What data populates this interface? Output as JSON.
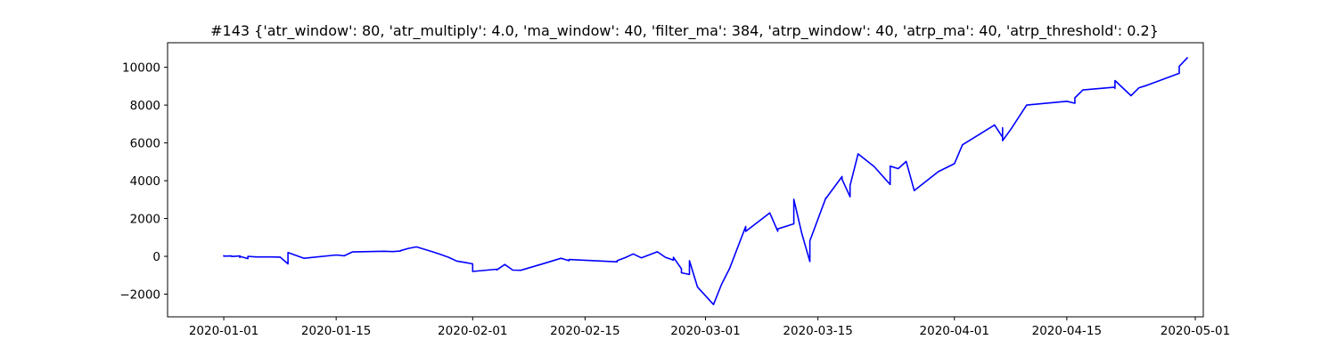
{
  "chart_data": {
    "type": "line",
    "title": "#143 {'atr_window': 80, 'atr_multiply': 4.0, 'ma_window': 40, 'filter_ma': 384, 'atrp_window': 40, 'atrp_ma': 40, 'atrp_threshold': 0.2}",
    "xlabel": "",
    "ylabel": "",
    "x_axis_type": "date",
    "xlim": [
      "2019-12-25",
      "2020-05-02"
    ],
    "ylim": [
      -3200,
      11300
    ],
    "grid": false,
    "line_color": "#0000ff",
    "x_ticks": [
      {
        "value": "2020-01-01",
        "label": "2020-01-01"
      },
      {
        "value": "2020-01-15",
        "label": "2020-01-15"
      },
      {
        "value": "2020-02-01",
        "label": "2020-02-01"
      },
      {
        "value": "2020-02-15",
        "label": "2020-02-15"
      },
      {
        "value": "2020-03-01",
        "label": "2020-03-01"
      },
      {
        "value": "2020-03-15",
        "label": "2020-03-15"
      },
      {
        "value": "2020-04-01",
        "label": "2020-04-01"
      },
      {
        "value": "2020-04-15",
        "label": "2020-04-15"
      },
      {
        "value": "2020-05-01",
        "label": "2020-05-01"
      }
    ],
    "y_ticks": [
      {
        "value": -2000,
        "label": "−2000"
      },
      {
        "value": 0,
        "label": "0"
      },
      {
        "value": 2000,
        "label": "2000"
      },
      {
        "value": 4000,
        "label": "4000"
      },
      {
        "value": 6000,
        "label": "6000"
      },
      {
        "value": 8000,
        "label": "8000"
      },
      {
        "value": 10000,
        "label": "10000"
      }
    ],
    "series": [
      {
        "points": [
          [
            "2020-01-01",
            30
          ],
          [
            "2020-01-01",
            10
          ],
          [
            "2020-01-02",
            20
          ],
          [
            "2020-01-02",
            -10
          ],
          [
            "2020-01-03",
            20
          ],
          [
            "2020-01-03",
            -60
          ],
          [
            "2020-01-03",
            0
          ],
          [
            "2020-01-04",
            -120
          ],
          [
            "2020-01-04",
            0
          ],
          [
            "2020-01-05",
            -30
          ],
          [
            "2020-01-07",
            -30
          ],
          [
            "2020-01-08",
            -40
          ],
          [
            "2020-01-08",
            -30
          ],
          [
            "2020-01-09",
            -400
          ],
          [
            "2020-01-09",
            200
          ],
          [
            "2020-01-11",
            -100
          ],
          [
            "2020-01-15",
            70
          ],
          [
            "2020-01-16",
            30
          ],
          [
            "2020-01-17",
            230
          ],
          [
            "2020-01-21",
            270
          ],
          [
            "2020-01-22",
            250
          ],
          [
            "2020-01-23",
            280
          ],
          [
            "2020-01-23",
            300
          ],
          [
            "2020-01-24",
            420
          ],
          [
            "2020-01-25",
            500
          ],
          [
            "2020-01-27",
            240
          ],
          [
            "2020-01-28",
            100
          ],
          [
            "2020-01-29",
            -50
          ],
          [
            "2020-01-30",
            -250
          ],
          [
            "2020-01-31",
            -320
          ],
          [
            "2020-02-01",
            -400
          ],
          [
            "2020-02-01",
            -800
          ],
          [
            "2020-02-04",
            -680
          ],
          [
            "2020-02-04",
            -720
          ],
          [
            "2020-02-05",
            -430
          ],
          [
            "2020-02-06",
            -730
          ],
          [
            "2020-02-07",
            -740
          ],
          [
            "2020-02-10",
            -360
          ],
          [
            "2020-02-12",
            -100
          ],
          [
            "2020-02-13",
            -230
          ],
          [
            "2020-02-13",
            -170
          ],
          [
            "2020-02-19",
            -290
          ],
          [
            "2020-02-19",
            -230
          ],
          [
            "2020-02-20",
            -70
          ],
          [
            "2020-02-21",
            130
          ],
          [
            "2020-02-22",
            -80
          ],
          [
            "2020-02-24",
            240
          ],
          [
            "2020-02-25",
            -50
          ],
          [
            "2020-02-26",
            -200
          ],
          [
            "2020-02-26",
            -50
          ],
          [
            "2020-02-27",
            -660
          ],
          [
            "2020-02-27",
            -870
          ],
          [
            "2020-02-28",
            -960
          ],
          [
            "2020-02-28",
            -230
          ],
          [
            "2020-02-29",
            -1620
          ],
          [
            "2020-03-02",
            -2550
          ],
          [
            "2020-03-03",
            -1480
          ],
          [
            "2020-03-04",
            -650
          ],
          [
            "2020-03-06",
            1580
          ],
          [
            "2020-03-06",
            1320
          ],
          [
            "2020-03-09",
            2300
          ],
          [
            "2020-03-10",
            1330
          ],
          [
            "2020-03-10",
            1450
          ],
          [
            "2020-03-12",
            1720
          ],
          [
            "2020-03-12",
            3020
          ],
          [
            "2020-03-13",
            1200
          ],
          [
            "2020-03-14",
            -270
          ],
          [
            "2020-03-14",
            820
          ],
          [
            "2020-03-16",
            3100
          ],
          [
            "2020-03-16",
            3060
          ],
          [
            "2020-03-18",
            4220
          ],
          [
            "2020-03-18",
            4080
          ],
          [
            "2020-03-19",
            3150
          ],
          [
            "2020-03-19",
            3750
          ],
          [
            "2020-03-20",
            5420
          ],
          [
            "2020-03-22",
            4750
          ],
          [
            "2020-03-24",
            3800
          ],
          [
            "2020-03-24",
            4770
          ],
          [
            "2020-03-25",
            4640
          ],
          [
            "2020-03-26",
            5020
          ],
          [
            "2020-03-27",
            3480
          ],
          [
            "2020-03-30",
            4480
          ],
          [
            "2020-04-01",
            4900
          ],
          [
            "2020-04-02",
            5900
          ],
          [
            "2020-04-06",
            6950
          ],
          [
            "2020-04-07",
            6300
          ],
          [
            "2020-04-07",
            6800
          ],
          [
            "2020-04-07",
            6120
          ],
          [
            "2020-04-08",
            6700
          ],
          [
            "2020-04-10",
            8000
          ],
          [
            "2020-04-15",
            8200
          ],
          [
            "2020-04-16",
            8100
          ],
          [
            "2020-04-16",
            8380
          ],
          [
            "2020-04-17",
            8800
          ],
          [
            "2020-04-21",
            8950
          ],
          [
            "2020-04-21",
            8880
          ],
          [
            "2020-04-21",
            9300
          ],
          [
            "2020-04-23",
            8500
          ],
          [
            "2020-04-24",
            8920
          ],
          [
            "2020-04-25",
            9050
          ],
          [
            "2020-04-29",
            9680
          ],
          [
            "2020-04-29",
            10050
          ],
          [
            "2020-04-30",
            10500
          ]
        ]
      }
    ]
  }
}
